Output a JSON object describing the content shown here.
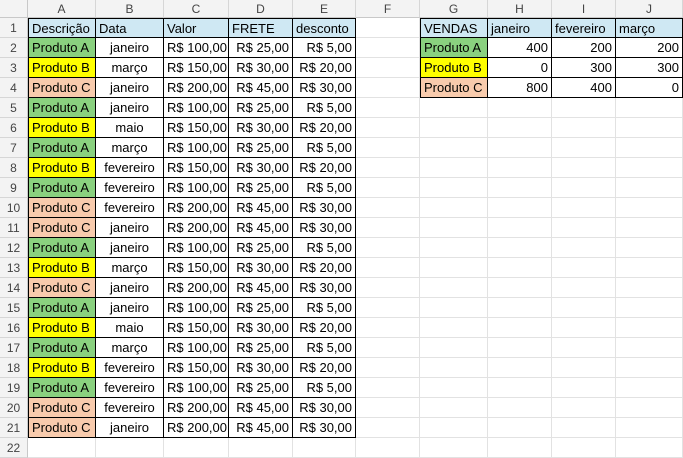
{
  "colors": {
    "header_fill": "#cfe8f3",
    "produto_a": "#8ad17f",
    "produto_b": "#ffff00",
    "produto_c": "#f8cbad"
  },
  "columns": [
    "A",
    "B",
    "C",
    "D",
    "E",
    "F",
    "G",
    "H",
    "I",
    "J"
  ],
  "rows": [
    "1",
    "2",
    "3",
    "4",
    "5",
    "6",
    "7",
    "8",
    "9",
    "10",
    "11",
    "12",
    "13",
    "14",
    "15",
    "16",
    "17",
    "18",
    "19",
    "20",
    "21",
    "22"
  ],
  "left_table": {
    "headers": [
      "Descrição",
      "Data",
      "Valor",
      "FRETE",
      "desconto"
    ],
    "rows": [
      [
        "Produto A",
        "janeiro",
        "R$ 100,00",
        "R$ 25,00",
        "R$ 5,00"
      ],
      [
        "Produto B",
        "março",
        "R$ 150,00",
        "R$ 30,00",
        "R$ 20,00"
      ],
      [
        "Produto C",
        "janeiro",
        "R$ 200,00",
        "R$ 45,00",
        "R$ 30,00"
      ],
      [
        "Produto A",
        "janeiro",
        "R$ 100,00",
        "R$ 25,00",
        "R$ 5,00"
      ],
      [
        "Produto B",
        "maio",
        "R$ 150,00",
        "R$ 30,00",
        "R$ 20,00"
      ],
      [
        "Produto A",
        "março",
        "R$ 100,00",
        "R$ 25,00",
        "R$ 5,00"
      ],
      [
        "Produto B",
        "fevereiro",
        "R$ 150,00",
        "R$ 30,00",
        "R$ 20,00"
      ],
      [
        "Produto A",
        "fevereiro",
        "R$ 100,00",
        "R$ 25,00",
        "R$ 5,00"
      ],
      [
        "Produto C",
        "fevereiro",
        "R$ 200,00",
        "R$ 45,00",
        "R$ 30,00"
      ],
      [
        "Produto C",
        "janeiro",
        "R$ 200,00",
        "R$ 45,00",
        "R$ 30,00"
      ],
      [
        "Produto A",
        "janeiro",
        "R$ 100,00",
        "R$ 25,00",
        "R$ 5,00"
      ],
      [
        "Produto B",
        "março",
        "R$ 150,00",
        "R$ 30,00",
        "R$ 20,00"
      ],
      [
        "Produto C",
        "janeiro",
        "R$ 200,00",
        "R$ 45,00",
        "R$ 30,00"
      ],
      [
        "Produto A",
        "janeiro",
        "R$ 100,00",
        "R$ 25,00",
        "R$ 5,00"
      ],
      [
        "Produto B",
        "maio",
        "R$ 150,00",
        "R$ 30,00",
        "R$ 20,00"
      ],
      [
        "Produto A",
        "março",
        "R$ 100,00",
        "R$ 25,00",
        "R$ 5,00"
      ],
      [
        "Produto B",
        "fevereiro",
        "R$ 150,00",
        "R$ 30,00",
        "R$ 20,00"
      ],
      [
        "Produto A",
        "fevereiro",
        "R$ 100,00",
        "R$ 25,00",
        "R$ 5,00"
      ],
      [
        "Produto C",
        "fevereiro",
        "R$ 200,00",
        "R$ 45,00",
        "R$ 30,00"
      ],
      [
        "Produto C",
        "janeiro",
        "R$ 200,00",
        "R$ 45,00",
        "R$ 30,00"
      ]
    ]
  },
  "right_table": {
    "headers": [
      "VENDAS",
      "janeiro",
      "fevereiro",
      "março"
    ],
    "rows": [
      [
        "Produto A",
        "400",
        "200",
        "200"
      ],
      [
        "Produto B",
        "0",
        "300",
        "300"
      ],
      [
        "Produto C",
        "800",
        "400",
        "0"
      ]
    ]
  }
}
